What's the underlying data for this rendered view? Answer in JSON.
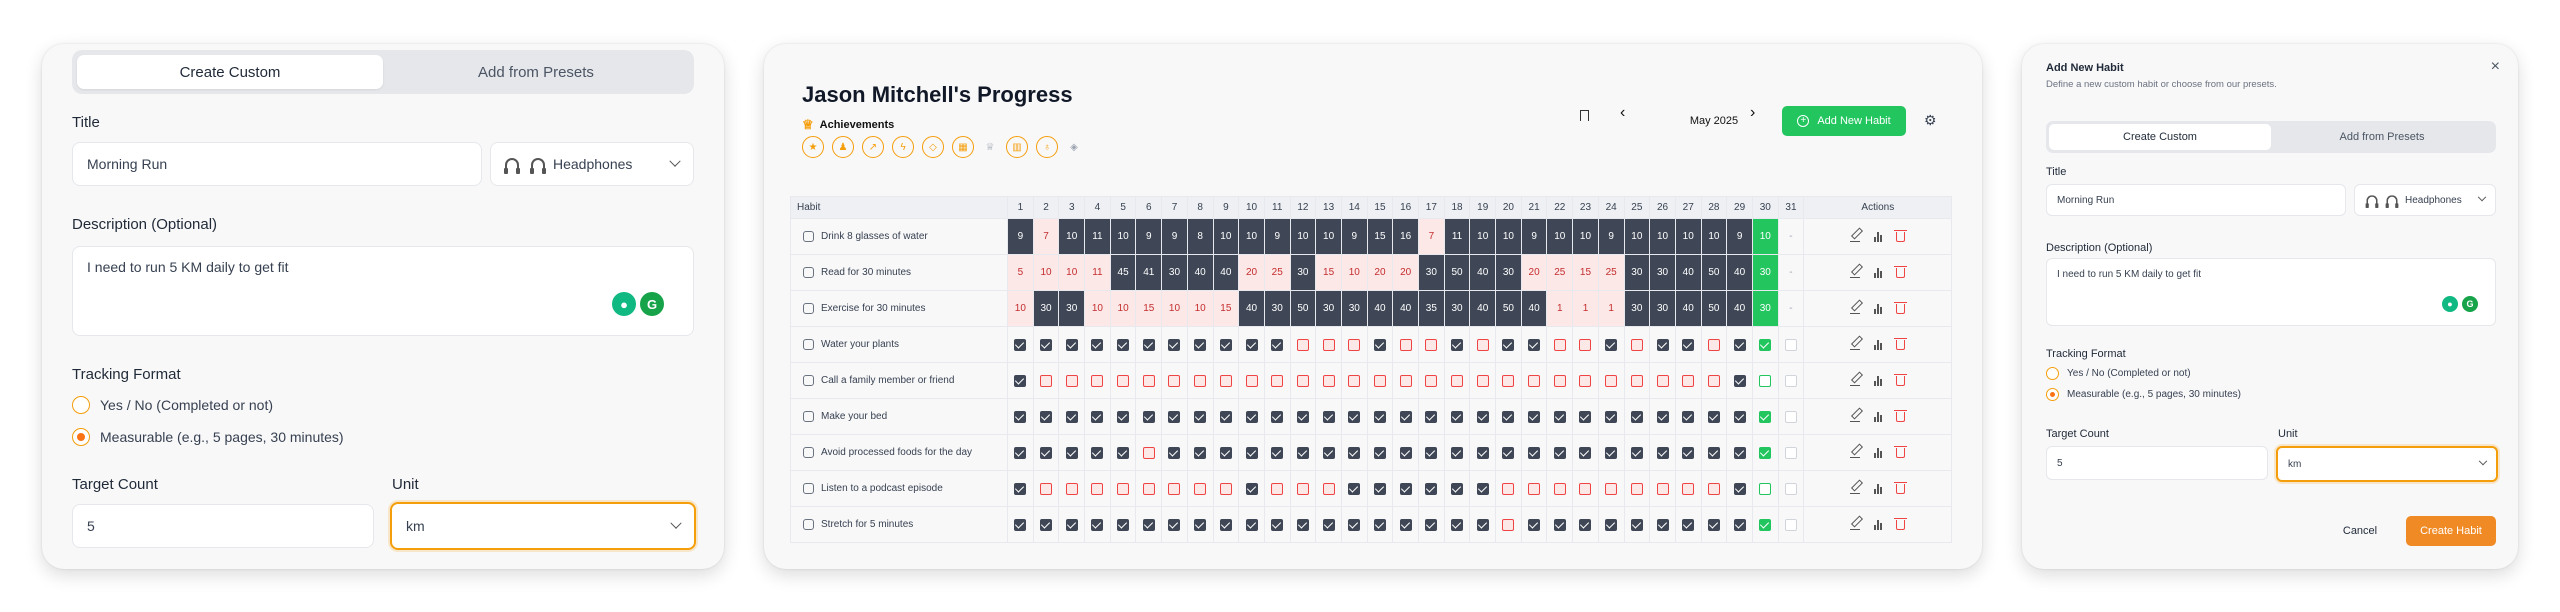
{
  "panel1": {
    "tabs": [
      "Create Custom",
      "Add from Presets"
    ],
    "title_label": "Title",
    "title_value": "Morning Run",
    "icon_select": "Headphones",
    "description_label": "Description (Optional)",
    "description_value": "I need to run 5 KM daily to get fit",
    "tracking_label": "Tracking Format",
    "option_yesno": "Yes / No (Completed or not)",
    "option_measurable": "Measurable (e.g., 5 pages, 30 minutes)",
    "target_label": "Target Count",
    "target_value": "5",
    "unit_label": "Unit",
    "unit_value": "km"
  },
  "panel2": {
    "title": "Jason Mitchell's Progress",
    "achievements": "Achievements",
    "month": "May 2025",
    "add_button": "Add New Habit",
    "habit_header": "Habit",
    "actions_header": "Actions",
    "days": [
      "1",
      "2",
      "3",
      "4",
      "5",
      "6",
      "7",
      "8",
      "9",
      "10",
      "11",
      "12",
      "13",
      "14",
      "15",
      "16",
      "17",
      "18",
      "19",
      "20",
      "21",
      "22",
      "23",
      "24",
      "25",
      "26",
      "27",
      "28",
      "29",
      "30",
      "31"
    ],
    "habits": [
      {
        "name": "Drink 8 glasses of water",
        "icon": "droplet-icon",
        "type": "count",
        "cells": [
          [
            "9",
            "d"
          ],
          [
            "7",
            "r"
          ],
          [
            "10",
            "d"
          ],
          [
            "11",
            "d"
          ],
          [
            "10",
            "d"
          ],
          [
            "9",
            "d"
          ],
          [
            "9",
            "d"
          ],
          [
            "8",
            "d"
          ],
          [
            "10",
            "d"
          ],
          [
            "10",
            "d"
          ],
          [
            "9",
            "d"
          ],
          [
            "10",
            "d"
          ],
          [
            "10",
            "d"
          ],
          [
            "9",
            "d"
          ],
          [
            "15",
            "d"
          ],
          [
            "16",
            "d"
          ],
          [
            "7",
            "r"
          ],
          [
            "11",
            "d"
          ],
          [
            "10",
            "d"
          ],
          [
            "10",
            "d"
          ],
          [
            "9",
            "d"
          ],
          [
            "10",
            "d"
          ],
          [
            "10",
            "d"
          ],
          [
            "9",
            "d"
          ],
          [
            "10",
            "d"
          ],
          [
            "10",
            "d"
          ],
          [
            "10",
            "d"
          ],
          [
            "10",
            "d"
          ],
          [
            "9",
            "d"
          ],
          [
            "10",
            "g"
          ],
          [
            "-",
            "e"
          ]
        ]
      },
      {
        "name": "Read for 30 minutes",
        "icon": "book-icon",
        "type": "count",
        "cells": [
          [
            "5",
            "r"
          ],
          [
            "10",
            "r"
          ],
          [
            "10",
            "r"
          ],
          [
            "11",
            "r"
          ],
          [
            "45",
            "d"
          ],
          [
            "41",
            "d"
          ],
          [
            "30",
            "d"
          ],
          [
            "40",
            "d"
          ],
          [
            "40",
            "d"
          ],
          [
            "20",
            "r"
          ],
          [
            "25",
            "r"
          ],
          [
            "30",
            "d"
          ],
          [
            "15",
            "r"
          ],
          [
            "10",
            "r"
          ],
          [
            "20",
            "r"
          ],
          [
            "20",
            "r"
          ],
          [
            "30",
            "d"
          ],
          [
            "50",
            "d"
          ],
          [
            "40",
            "d"
          ],
          [
            "30",
            "d"
          ],
          [
            "20",
            "r"
          ],
          [
            "25",
            "r"
          ],
          [
            "15",
            "r"
          ],
          [
            "25",
            "r"
          ],
          [
            "30",
            "d"
          ],
          [
            "30",
            "d"
          ],
          [
            "40",
            "d"
          ],
          [
            "50",
            "d"
          ],
          [
            "40",
            "d"
          ],
          [
            "30",
            "g"
          ],
          [
            "-",
            "e"
          ]
        ]
      },
      {
        "name": "Exercise for 30 minutes",
        "icon": "dumbbell-icon",
        "type": "count",
        "cells": [
          [
            "10",
            "r"
          ],
          [
            "30",
            "d"
          ],
          [
            "30",
            "d"
          ],
          [
            "10",
            "r"
          ],
          [
            "10",
            "r"
          ],
          [
            "15",
            "r"
          ],
          [
            "10",
            "r"
          ],
          [
            "10",
            "r"
          ],
          [
            "15",
            "r"
          ],
          [
            "40",
            "d"
          ],
          [
            "30",
            "d"
          ],
          [
            "50",
            "d"
          ],
          [
            "30",
            "d"
          ],
          [
            "30",
            "d"
          ],
          [
            "40",
            "d"
          ],
          [
            "40",
            "d"
          ],
          [
            "35",
            "d"
          ],
          [
            "30",
            "d"
          ],
          [
            "40",
            "d"
          ],
          [
            "50",
            "d"
          ],
          [
            "40",
            "d"
          ],
          [
            "1",
            "r"
          ],
          [
            "1",
            "r"
          ],
          [
            "1",
            "r"
          ],
          [
            "30",
            "d"
          ],
          [
            "30",
            "d"
          ],
          [
            "40",
            "d"
          ],
          [
            "50",
            "d"
          ],
          [
            "40",
            "d"
          ],
          [
            "30",
            "g"
          ],
          [
            "-",
            "e"
          ]
        ]
      },
      {
        "name": "Water your plants",
        "icon": "plant-icon",
        "type": "check",
        "cells": [
          "d",
          "d",
          "d",
          "d",
          "d",
          "d",
          "d",
          "d",
          "d",
          "d",
          "d",
          "r",
          "r",
          "r",
          "d",
          "r",
          "r",
          "d",
          "r",
          "d",
          "d",
          "r",
          "r",
          "d",
          "r",
          "d",
          "d",
          "r",
          "d",
          "g",
          "e"
        ]
      },
      {
        "name": "Call a family member or friend",
        "icon": "phone-icon",
        "type": "check",
        "cells": [
          "d",
          "r",
          "r",
          "r",
          "r",
          "r",
          "r",
          "r",
          "r",
          "r",
          "r",
          "r",
          "r",
          "r",
          "r",
          "r",
          "r",
          "r",
          "r",
          "r",
          "r",
          "r",
          "r",
          "r",
          "r",
          "r",
          "r",
          "r",
          "d",
          "go",
          "e"
        ]
      },
      {
        "name": "Make your bed",
        "icon": "bed-icon",
        "type": "check",
        "cells": [
          "d",
          "d",
          "d",
          "d",
          "d",
          "d",
          "d",
          "d",
          "d",
          "d",
          "d",
          "d",
          "d",
          "d",
          "d",
          "d",
          "d",
          "d",
          "d",
          "d",
          "d",
          "d",
          "d",
          "d",
          "d",
          "d",
          "d",
          "d",
          "d",
          "g",
          "e"
        ]
      },
      {
        "name": "Avoid processed foods for the day",
        "icon": "food-icon",
        "type": "check",
        "cells": [
          "d",
          "d",
          "d",
          "d",
          "d",
          "r",
          "d",
          "d",
          "d",
          "d",
          "d",
          "d",
          "d",
          "d",
          "d",
          "d",
          "d",
          "d",
          "d",
          "d",
          "d",
          "d",
          "d",
          "d",
          "d",
          "d",
          "d",
          "d",
          "d",
          "g",
          "e"
        ]
      },
      {
        "name": "Listen to a podcast episode",
        "icon": "podcast-icon",
        "type": "check",
        "cells": [
          "d",
          "r",
          "r",
          "r",
          "r",
          "r",
          "r",
          "r",
          "r",
          "d",
          "r",
          "r",
          "r",
          "d",
          "d",
          "d",
          "d",
          "d",
          "d",
          "r",
          "r",
          "r",
          "r",
          "r",
          "r",
          "r",
          "r",
          "r",
          "d",
          "go",
          "e"
        ]
      },
      {
        "name": "Stretch for 5 minutes",
        "icon": "activity-icon",
        "type": "check",
        "cells": [
          "d",
          "d",
          "d",
          "d",
          "d",
          "d",
          "d",
          "d",
          "d",
          "d",
          "d",
          "d",
          "d",
          "d",
          "d",
          "d",
          "d",
          "d",
          "d",
          "r",
          "d",
          "d",
          "d",
          "d",
          "d",
          "d",
          "d",
          "d",
          "d",
          "g",
          "e"
        ]
      }
    ],
    "badge_icons": [
      "medal-icon",
      "badge-icon",
      "trending-icon",
      "bolt-icon",
      "shield-icon",
      "calendar-icon",
      "trophy-icon",
      "calendar-check-icon",
      "award-icon",
      "gem-icon"
    ]
  },
  "panel3": {
    "heading": "Add New Habit",
    "subheading": "Define a new custom habit or choose from our presets.",
    "tabs": [
      "Create Custom",
      "Add from Presets"
    ],
    "title_label": "Title",
    "title_value": "Morning Run",
    "icon_select": "Headphones",
    "description_label": "Description (Optional)",
    "description_value": "I need to run 5 KM daily to get fit",
    "tracking_label": "Tracking Format",
    "option_yesno": "Yes / No (Completed or not)",
    "option_measurable": "Measurable (e.g., 5 pages, 30 minutes)",
    "target_label": "Target Count",
    "target_value": "5",
    "unit_label": "Unit",
    "unit_value": "km",
    "cancel": "Cancel",
    "create": "Create Habit"
  },
  "colors": {
    "accent": "#f97316",
    "success": "#22c55e",
    "done": "#3f4756",
    "missed": "#fde8e8"
  }
}
